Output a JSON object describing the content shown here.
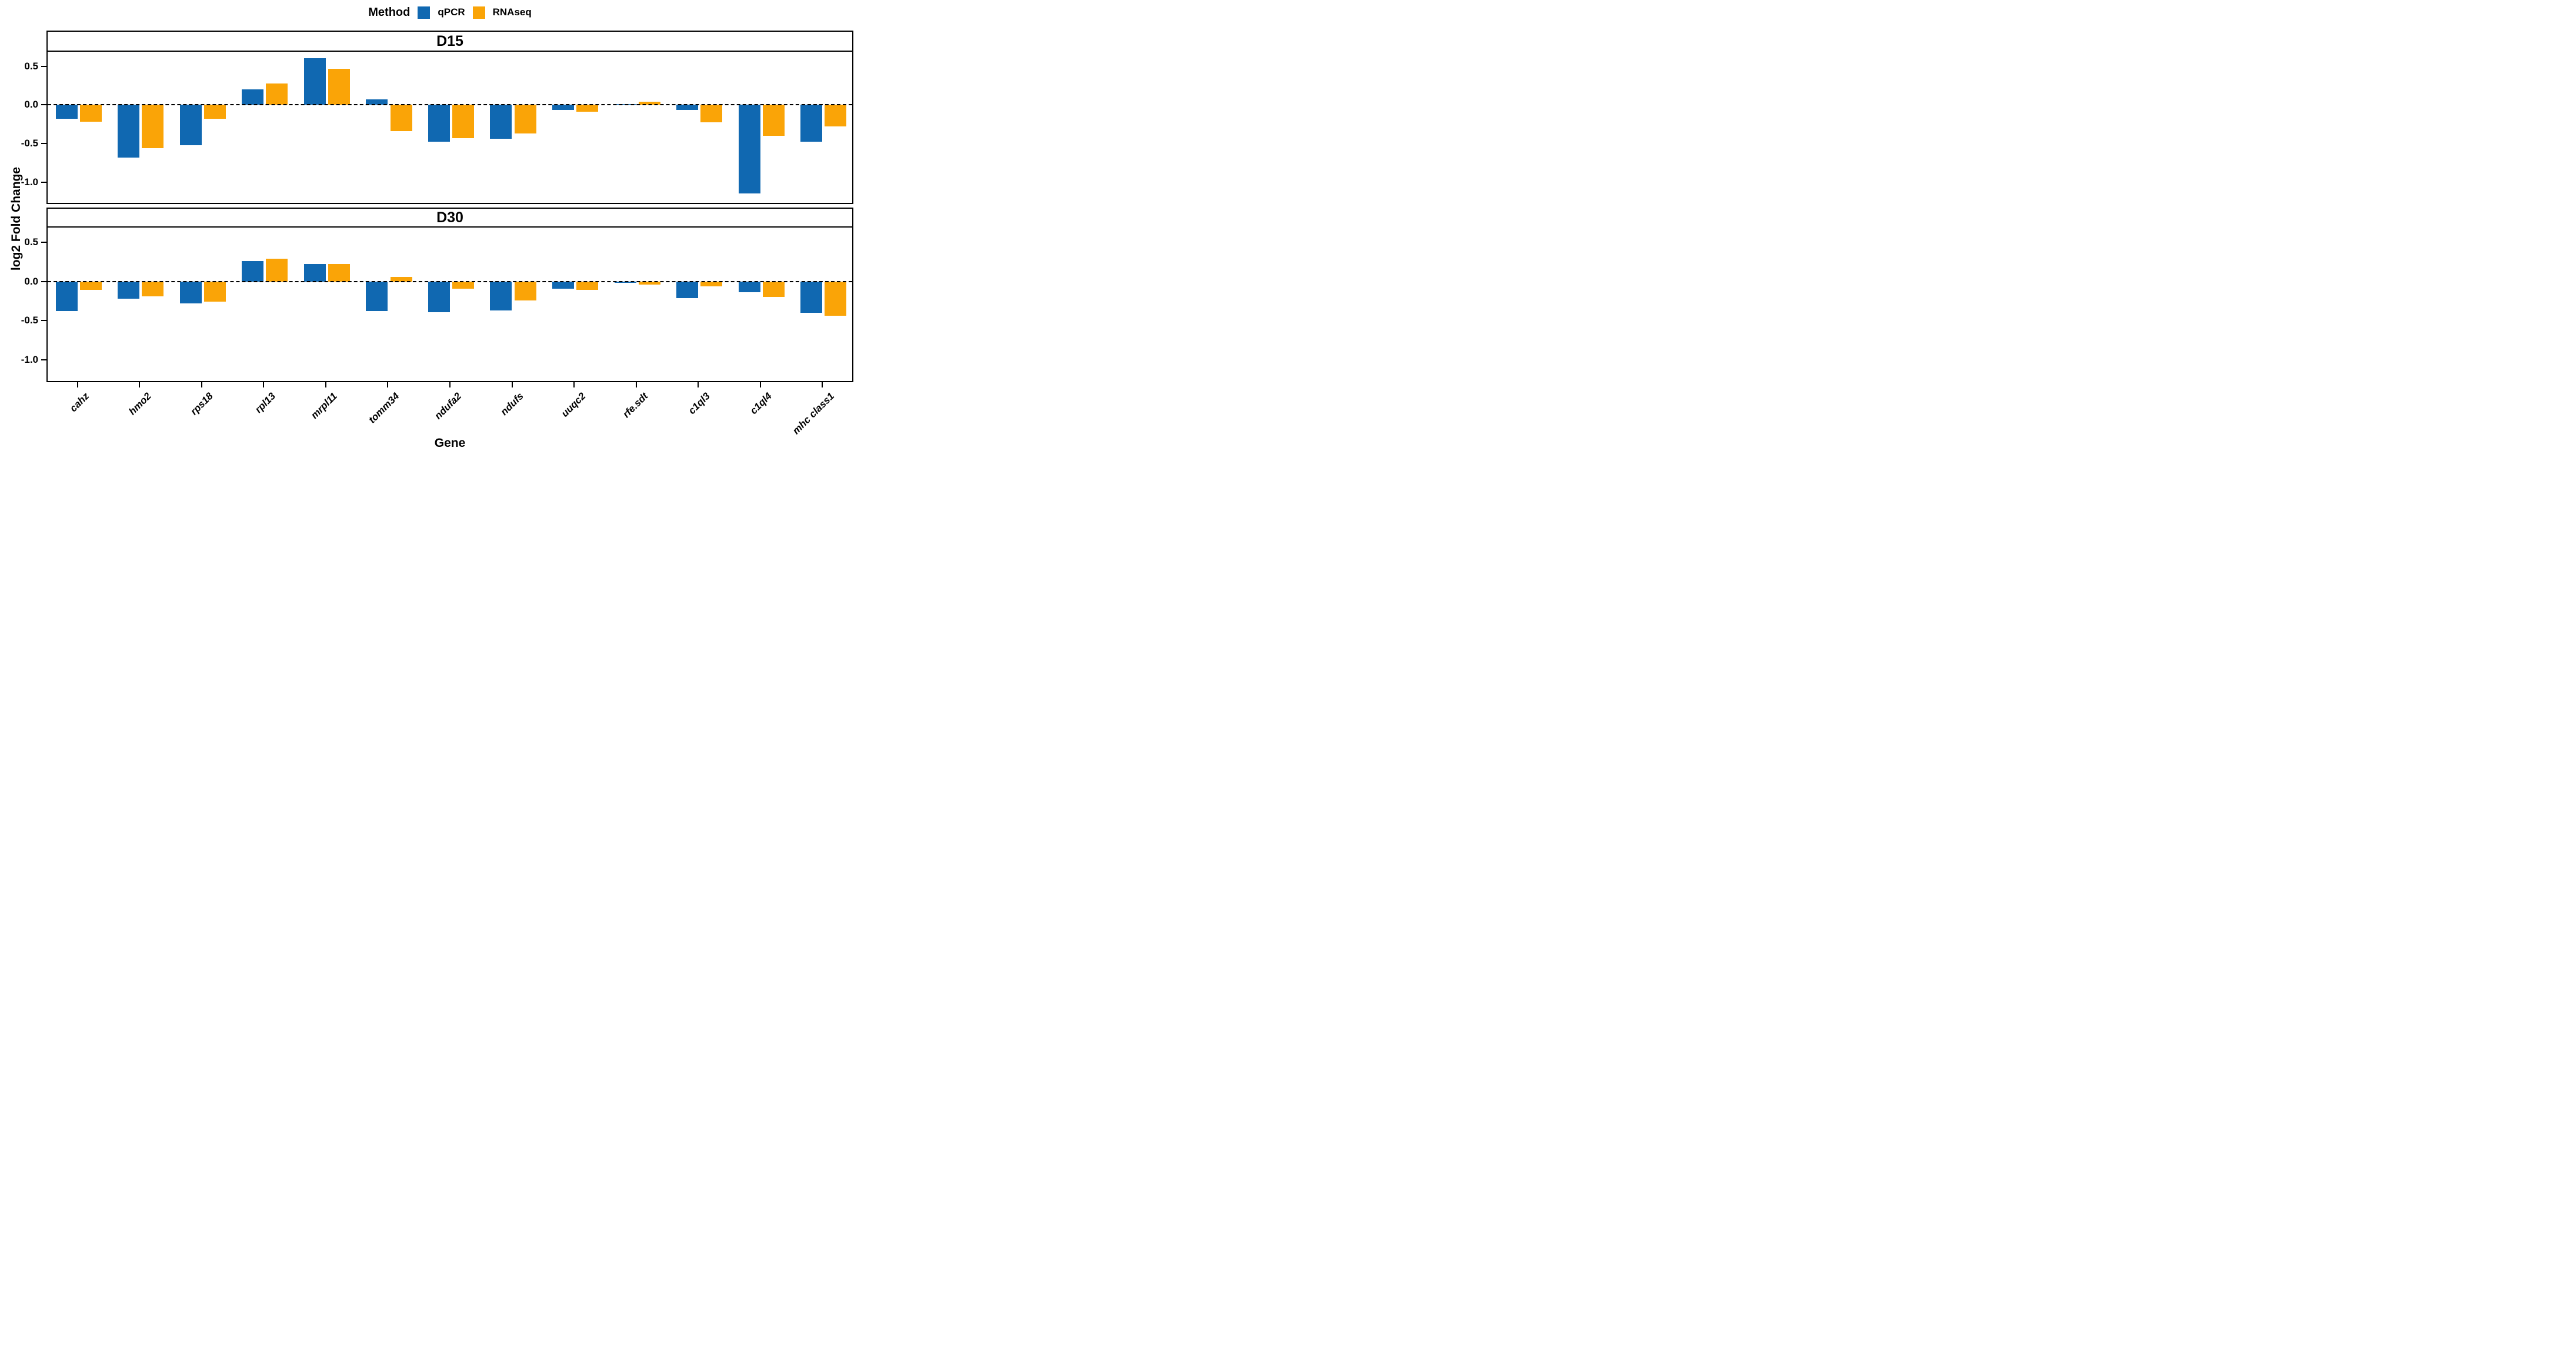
{
  "chart_data": {
    "type": "bar",
    "legend_title": "Method",
    "xlabel": "Gene",
    "ylabel": "log2 Fold Change",
    "legend_position": "top",
    "grid": false,
    "zero_line": "dashed-black",
    "yticks": [
      "0.5",
      "0.0",
      "-0.5",
      "-1.0"
    ],
    "ytick_values": [
      0.5,
      0.0,
      -0.5,
      -1.0
    ],
    "ylim": [
      -1.285,
      0.6875
    ],
    "colors": {
      "qPCR": "#1068B1",
      "RNAseq": "#FAA407"
    },
    "categories": [
      "cahz",
      "hmo2",
      "rps18",
      "rpl13",
      "mrpl11",
      "tomm34",
      "ndufa2",
      "ndufs",
      "uuqc2",
      "rfe.sdt",
      "c1ql3",
      "c1ql4",
      "mhc class1"
    ],
    "facets": [
      {
        "title": "D15",
        "series": [
          {
            "name": "qPCR",
            "values": [
              -0.18,
              -0.68,
              -0.52,
              0.2,
              0.6,
              0.07,
              -0.48,
              -0.44,
              -0.07,
              0.01,
              -0.07,
              -1.15,
              -0.48
            ]
          },
          {
            "name": "RNAseq",
            "values": [
              -0.22,
              -0.56,
              -0.18,
              0.28,
              0.47,
              -0.34,
              -0.43,
              -0.37,
              -0.09,
              0.04,
              -0.23,
              -0.4,
              -0.28
            ]
          }
        ]
      },
      {
        "title": "D30",
        "series": [
          {
            "name": "qPCR",
            "values": [
              -0.38,
              -0.22,
              -0.28,
              0.26,
              0.22,
              -0.38,
              -0.39,
              -0.37,
              -0.09,
              -0.02,
              -0.21,
              -0.14,
              -0.4
            ]
          },
          {
            "name": "RNAseq",
            "values": [
              -0.11,
              -0.19,
              -0.26,
              0.29,
              0.22,
              0.06,
              -0.09,
              -0.24,
              -0.11,
              -0.04,
              -0.06,
              -0.2,
              -0.44
            ]
          }
        ]
      }
    ]
  }
}
